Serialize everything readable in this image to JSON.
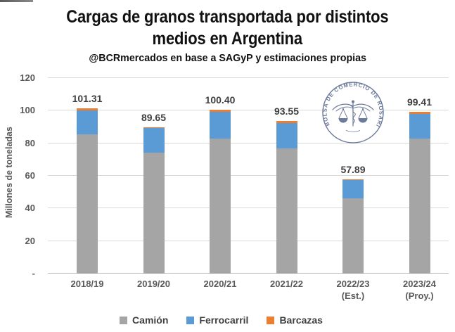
{
  "header": {
    "title_line1": "Cargas de granos transportada por distintos",
    "title_line2": "medios en Argentina",
    "subtitle": "@BCRmercados en base a SAGyP y estimaciones propias"
  },
  "chart_data": {
    "type": "bar",
    "stacked": true,
    "title": "Cargas de granos transportada por distintos medios en Argentina",
    "subtitle": "@BCRmercados en base a SAGyP y estimaciones propias",
    "ylabel": "Millones de toneladas",
    "ylim": [
      0,
      120
    ],
    "ytick_interval": 20,
    "ytick_labels_top_to_bottom": [
      "120",
      "100",
      "80",
      "60",
      "40",
      "20",
      "-"
    ],
    "grid": true,
    "legend_position": "bottom",
    "categories": [
      "2018/19",
      "2019/20",
      "2020/21",
      "2021/22",
      "2022/23 (Est.)",
      "2023/24 (Proy.)"
    ],
    "category_label_lines": [
      [
        "2018/19"
      ],
      [
        "2019/20"
      ],
      [
        "2020/21"
      ],
      [
        "2021/22"
      ],
      [
        "2022/23",
        "(Est.)"
      ],
      [
        "2023/24",
        "(Proy.)"
      ]
    ],
    "totals": [
      101.31,
      89.65,
      100.4,
      93.55,
      57.89,
      99.41
    ],
    "total_labels": [
      "101.31",
      "89.65",
      "100.40",
      "93.55",
      "57.89",
      "99.41"
    ],
    "series": [
      {
        "name": "Camión",
        "color": "#A5A5A5",
        "values": [
          85.3,
          74.4,
          83.0,
          76.8,
          46.3,
          83.0
        ]
      },
      {
        "name": "Ferrocarril",
        "color": "#5B9BD5",
        "values": [
          14.7,
          15.0,
          16.4,
          15.55,
          11.2,
          15.2
        ]
      },
      {
        "name": "Barcazas",
        "color": "#ED7D31",
        "values": [
          1.31,
          0.25,
          1.0,
          1.2,
          0.39,
          1.21
        ]
      }
    ]
  },
  "legend": {
    "items": [
      {
        "label": "Camión",
        "color": "#A5A5A5"
      },
      {
        "label": "Ferrocarril",
        "color": "#5B9BD5"
      },
      {
        "label": "Barcazas",
        "color": "#ED7D31"
      }
    ]
  },
  "logo": {
    "ring_text": "BOLSA DE COMERCIO DE ROSARIO",
    "color": "#54648a"
  },
  "colors": {
    "gridline": "#d9d9d9",
    "axis_text": "#595959",
    "data_label": "#3f3f3f",
    "title_text": "#111111"
  }
}
